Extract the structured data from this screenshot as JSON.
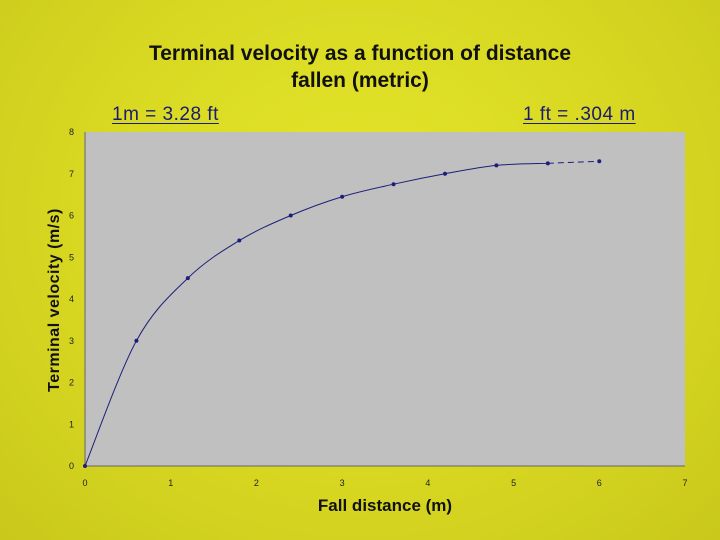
{
  "chart_data": {
    "type": "scatter",
    "title": [
      "Terminal velocity as a function of distance",
      "fallen (metric)"
    ],
    "xlabel": "Fall distance (m)",
    "ylabel": "Terminal velocity (m/s)",
    "xlim": [
      0,
      7
    ],
    "ylim": [
      0,
      8
    ],
    "xticks": [
      0,
      1,
      2,
      3,
      4,
      5,
      6,
      7
    ],
    "yticks": [
      0,
      1,
      2,
      3,
      4,
      5,
      6,
      7,
      8
    ],
    "grid": false,
    "legend": "none",
    "series": [
      {
        "x": [
          0,
          0.6,
          1.2,
          1.8,
          2.4,
          3.0,
          3.6,
          4.2,
          4.8,
          5.4,
          6.0
        ],
        "y": [
          0,
          3.0,
          4.5,
          5.4,
          6.0,
          6.45,
          6.75,
          7.0,
          7.2,
          7.25,
          7.3
        ]
      }
    ],
    "annotations": [
      "1m = 3.28 ft",
      "1 ft = .304 m"
    ]
  },
  "colors": {
    "background": "#d8d822",
    "plot_area": "#c0c0c0",
    "series": "#1c1f7a",
    "text": "#111111",
    "annotation": "#1a1c6e"
  }
}
